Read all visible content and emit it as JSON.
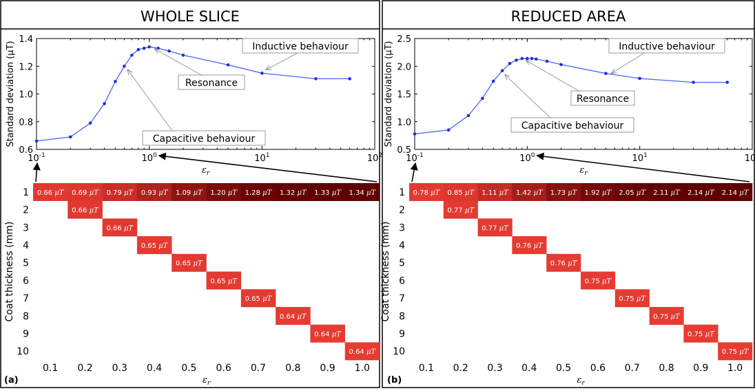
{
  "figure": {
    "panels": [
      {
        "header": "WHOLE SLICE",
        "letter": "(a)"
      },
      {
        "header": "REDUCED AREA",
        "letter": "(b)"
      }
    ]
  },
  "colors": {
    "line": "#4b62ff",
    "annotation": "#9a9a9a",
    "heat_low": "#e53b32",
    "heat_high": "#5e0000"
  },
  "chart_data": [
    {
      "type": "line",
      "panel": "WHOLE SLICE",
      "xlabel": "ε",
      "xlabel_sub": "r",
      "ylabel": "Standard deviation (μT)",
      "xscale": "log",
      "xlim": [
        0.1,
        100
      ],
      "ylim": [
        0.6,
        1.4
      ],
      "xticks": [
        {
          "base": "10",
          "exp": "-1"
        },
        {
          "base": "10",
          "exp": "0"
        },
        {
          "base": "10",
          "exp": "1"
        },
        {
          "base": "10",
          "exp": "2"
        }
      ],
      "yticks": [
        "0.6",
        "0.8",
        "1.0",
        "1.2",
        "1.4"
      ],
      "series": [
        {
          "x": [
            0.1,
            0.2,
            0.3,
            0.4,
            0.5,
            0.6,
            0.7,
            0.8,
            0.9,
            1.0,
            1.2,
            1.5,
            2,
            5,
            10,
            30,
            60
          ],
          "y": [
            0.66,
            0.69,
            0.79,
            0.93,
            1.09,
            1.2,
            1.28,
            1.32,
            1.33,
            1.34,
            1.33,
            1.31,
            1.28,
            1.21,
            1.15,
            1.11,
            1.11
          ]
        }
      ],
      "annotations": [
        {
          "text": "Inductive behaviour",
          "target": [
            10,
            1.15
          ]
        },
        {
          "text": "Resonance",
          "target": [
            1.0,
            1.34
          ]
        },
        {
          "text": "Capacitive behaviour",
          "target": [
            0.6,
            1.2
          ]
        }
      ]
    },
    {
      "type": "heatmap",
      "panel": "WHOLE SLICE",
      "xlabel": "ε",
      "xlabel_sub": "r",
      "ylabel": "Coat thickness (mm)",
      "x_categories": [
        "0.1",
        "0.2",
        "0.3",
        "0.4",
        "0.5",
        "0.6",
        "0.7",
        "0.8",
        "0.9",
        "1.0"
      ],
      "y_categories": [
        "1",
        "2",
        "3",
        "4",
        "5",
        "6",
        "7",
        "8",
        "9",
        "10"
      ],
      "unit": "μT",
      "cells": [
        {
          "row": 1,
          "col": 1,
          "value": 0.66
        },
        {
          "row": 1,
          "col": 2,
          "value": 0.69
        },
        {
          "row": 1,
          "col": 3,
          "value": 0.79
        },
        {
          "row": 1,
          "col": 4,
          "value": 0.93
        },
        {
          "row": 1,
          "col": 5,
          "value": 1.09
        },
        {
          "row": 1,
          "col": 6,
          "value": 1.2
        },
        {
          "row": 1,
          "col": 7,
          "value": 1.28
        },
        {
          "row": 1,
          "col": 8,
          "value": 1.32
        },
        {
          "row": 1,
          "col": 9,
          "value": 1.33
        },
        {
          "row": 1,
          "col": 10,
          "value": 1.34
        },
        {
          "row": 2,
          "col": 2,
          "value": 0.66
        },
        {
          "row": 3,
          "col": 3,
          "value": 0.66
        },
        {
          "row": 4,
          "col": 4,
          "value": 0.65
        },
        {
          "row": 5,
          "col": 5,
          "value": 0.65
        },
        {
          "row": 6,
          "col": 6,
          "value": 0.65
        },
        {
          "row": 7,
          "col": 7,
          "value": 0.65
        },
        {
          "row": 8,
          "col": 8,
          "value": 0.64
        },
        {
          "row": 9,
          "col": 9,
          "value": 0.64
        },
        {
          "row": 10,
          "col": 10,
          "value": 0.64
        }
      ]
    },
    {
      "type": "line",
      "panel": "REDUCED AREA",
      "xlabel": "ε",
      "xlabel_sub": "r",
      "ylabel": "Standard deviation (μT)",
      "xscale": "log",
      "xlim": [
        0.1,
        100
      ],
      "ylim": [
        0.5,
        2.5
      ],
      "xticks": [
        {
          "base": "10",
          "exp": "-1"
        },
        {
          "base": "10",
          "exp": "0"
        },
        {
          "base": "10",
          "exp": "1"
        },
        {
          "base": "10",
          "exp": "2"
        }
      ],
      "yticks": [
        "0.5",
        "1.0",
        "1.5",
        "2.0",
        "2.5"
      ],
      "series": [
        {
          "x": [
            0.1,
            0.2,
            0.3,
            0.4,
            0.5,
            0.6,
            0.7,
            0.8,
            0.9,
            1.0,
            1.1,
            1.2,
            1.5,
            2,
            5,
            10,
            30,
            60
          ],
          "y": [
            0.78,
            0.85,
            1.11,
            1.42,
            1.73,
            1.92,
            2.05,
            2.11,
            2.14,
            2.14,
            2.14,
            2.13,
            2.09,
            2.03,
            1.87,
            1.78,
            1.71,
            1.71
          ]
        }
      ],
      "annotations": [
        {
          "text": "Inductive behaviour",
          "target": [
            5,
            1.87
          ]
        },
        {
          "text": "Resonance",
          "target": [
            0.9,
            2.14
          ]
        },
        {
          "text": "Capacitive behaviour",
          "target": [
            0.6,
            1.92
          ]
        }
      ]
    },
    {
      "type": "heatmap",
      "panel": "REDUCED AREA",
      "xlabel": "ε",
      "xlabel_sub": "r",
      "ylabel": "Coat thickness (mm)",
      "x_categories": [
        "0.1",
        "0.2",
        "0.3",
        "0.4",
        "0.5",
        "0.6",
        "0.7",
        "0.8",
        "0.9",
        "1.0"
      ],
      "y_categories": [
        "1",
        "2",
        "3",
        "4",
        "5",
        "6",
        "7",
        "8",
        "9",
        "10"
      ],
      "unit": "μT",
      "cells": [
        {
          "row": 1,
          "col": 1,
          "value": 0.78
        },
        {
          "row": 1,
          "col": 2,
          "value": 0.85
        },
        {
          "row": 1,
          "col": 3,
          "value": 1.11
        },
        {
          "row": 1,
          "col": 4,
          "value": 1.42
        },
        {
          "row": 1,
          "col": 5,
          "value": 1.73
        },
        {
          "row": 1,
          "col": 6,
          "value": 1.92
        },
        {
          "row": 1,
          "col": 7,
          "value": 2.05
        },
        {
          "row": 1,
          "col": 8,
          "value": 2.11
        },
        {
          "row": 1,
          "col": 9,
          "value": 2.14
        },
        {
          "row": 1,
          "col": 10,
          "value": 2.14
        },
        {
          "row": 2,
          "col": 2,
          "value": 0.77
        },
        {
          "row": 3,
          "col": 3,
          "value": 0.77
        },
        {
          "row": 4,
          "col": 4,
          "value": 0.76
        },
        {
          "row": 5,
          "col": 5,
          "value": 0.76
        },
        {
          "row": 6,
          "col": 6,
          "value": 0.75
        },
        {
          "row": 7,
          "col": 7,
          "value": 0.75
        },
        {
          "row": 8,
          "col": 8,
          "value": 0.75
        },
        {
          "row": 9,
          "col": 9,
          "value": 0.75
        },
        {
          "row": 10,
          "col": 10,
          "value": 0.75
        }
      ]
    }
  ]
}
